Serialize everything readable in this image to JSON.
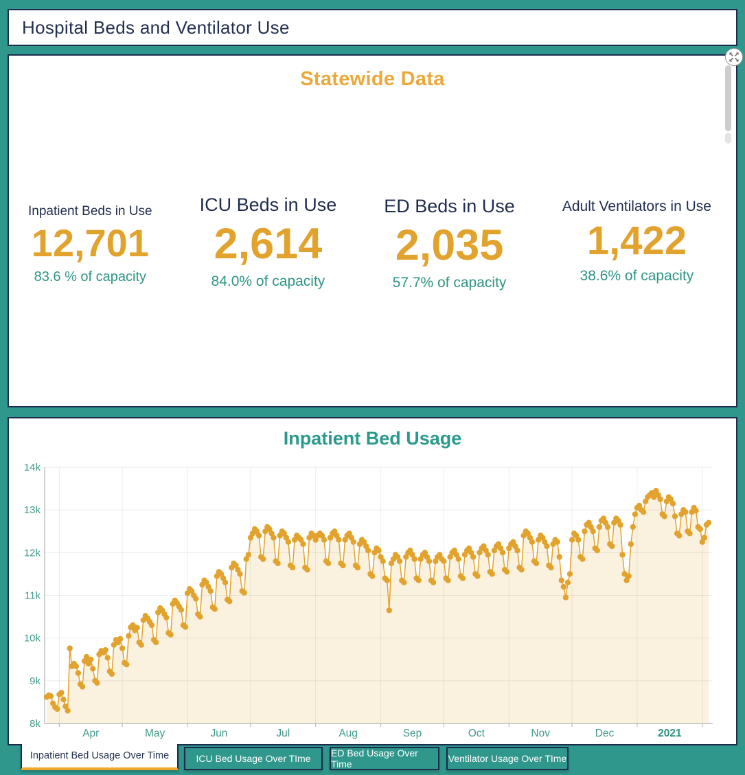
{
  "header": {
    "title": "Hospital Beds and Ventilator Use"
  },
  "statewide": {
    "title": "Statewide Data",
    "cards": [
      {
        "label": "Inpatient Beds in Use",
        "value": "12,701",
        "capacity": "83.6 % of capacity"
      },
      {
        "label": "ICU Beds in Use",
        "value": "2,614",
        "capacity": "84.0% of capacity"
      },
      {
        "label": "ED Beds in Use",
        "value": "2,035",
        "capacity": "57.7% of capacity"
      },
      {
        "label": "Adult Ventilators in Use",
        "value": "1,422",
        "capacity": "38.6% of capacity"
      }
    ]
  },
  "tabs": [
    {
      "label": "Inpatient Bed Usage Over Time",
      "active": true
    },
    {
      "label": "ICU Bed Usage Over TIme",
      "active": false
    },
    {
      "label": "ED Bed Usage Over Time",
      "active": false
    },
    {
      "label": "Ventilator Usage Over TIme",
      "active": false
    }
  ],
  "colors": {
    "background_teal": "#2F978B",
    "navy": "#1D2B4D",
    "orange": "#E2A32E",
    "orange_title": "#EAA93C",
    "teal_text": "#2E9487",
    "chart_fill": "#FAF2DF",
    "active_tab_underline": "#F1A72E"
  },
  "chart_data": {
    "type": "line",
    "title": "Inpatient Bed Usage",
    "xlabel": "",
    "ylabel": "",
    "ylim": [
      8000,
      14000
    ],
    "y_ticks": [
      "8k",
      "9k",
      "10k",
      "11k",
      "12k",
      "13k",
      "14k"
    ],
    "legend": "none",
    "grid": true,
    "months": [
      {
        "label": "Apr",
        "start": 6
      },
      {
        "label": "May",
        "start": 36
      },
      {
        "label": "Jun",
        "start": 67
      },
      {
        "label": "Jul",
        "start": 97
      },
      {
        "label": "Aug",
        "start": 128
      },
      {
        "label": "Sep",
        "start": 159
      },
      {
        "label": "Oct",
        "start": 189
      },
      {
        "label": "Nov",
        "start": 220
      },
      {
        "label": "Dec",
        "start": 250
      },
      {
        "label": "2021",
        "start": 281,
        "bold": true
      },
      {
        "label": "",
        "start": 312
      }
    ],
    "values": [
      8620,
      8660,
      8640,
      8470,
      8380,
      8340,
      8680,
      8720,
      8560,
      8400,
      8300,
      9760,
      9340,
      9400,
      9340,
      9180,
      8920,
      8860,
      9460,
      9560,
      9400,
      9500,
      9280,
      9000,
      8950,
      9620,
      9700,
      9660,
      9720,
      9540,
      9220,
      9160,
      9840,
      9960,
      9900,
      9980,
      9760,
      9420,
      9380,
      10050,
      10250,
      10300,
      10180,
      10240,
      9900,
      9840,
      10420,
      10520,
      10460,
      10380,
      10300,
      9960,
      9900,
      10600,
      10700,
      10650,
      10560,
      10480,
      10120,
      10080,
      10800,
      10880,
      10820,
      10740,
      10660,
      10300,
      10260,
      11050,
      11150,
      11100,
      11000,
      10920,
      10560,
      10500,
      11250,
      11350,
      11300,
      11200,
      11100,
      10720,
      10680,
      11450,
      11550,
      11500,
      11400,
      11300,
      10900,
      10860,
      11650,
      11750,
      11700,
      11600,
      11500,
      11100,
      11060,
      11850,
      11950,
      12350,
      12450,
      12550,
      12500,
      12400,
      11900,
      11850,
      12500,
      12600,
      12550,
      12450,
      12350,
      11800,
      11750,
      12400,
      12500,
      12450,
      12350,
      12250,
      11700,
      11650,
      12300,
      12400,
      12350,
      12300,
      12200,
      11650,
      11600,
      12350,
      12450,
      12400,
      12300,
      12400,
      12450,
      12400,
      12300,
      11800,
      11750,
      12350,
      12450,
      12500,
      12400,
      12300,
      11750,
      11700,
      12300,
      12400,
      12450,
      12350,
      12250,
      11700,
      11650,
      12200,
      12300,
      12250,
      12150,
      12050,
      11500,
      11450,
      12000,
      12100,
      12050,
      11900,
      11800,
      11400,
      11350,
      10650,
      11750,
      11850,
      11950,
      11900,
      11800,
      11350,
      11300,
      11900,
      12000,
      12050,
      11950,
      11850,
      11400,
      11350,
      11850,
      11950,
      12000,
      11900,
      11800,
      11350,
      11300,
      11800,
      11900,
      11950,
      11850,
      11800,
      11400,
      11350,
      11900,
      12000,
      12050,
      11950,
      11850,
      11450,
      11400,
      11950,
      12050,
      12100,
      12000,
      11900,
      11500,
      11450,
      12000,
      12100,
      12150,
      12050,
      11950,
      11550,
      11500,
      12050,
      12150,
      12200,
      12100,
      12000,
      11600,
      11550,
      12100,
      12200,
      12250,
      12150,
      12050,
      11650,
      11600,
      12400,
      12500,
      12450,
      12350,
      12250,
      11800,
      11750,
      12300,
      12400,
      12350,
      12250,
      12150,
      11700,
      11650,
      12200,
      12300,
      12250,
      11900,
      11350,
      11200,
      10950,
      11300,
      11500,
      12300,
      12450,
      12400,
      12300,
      11900,
      11850,
      12500,
      12650,
      12700,
      12600,
      12500,
      12100,
      12050,
      12600,
      12750,
      12800,
      12700,
      12600,
      12200,
      12150,
      12700,
      12800,
      12750,
      12650,
      11950,
      11500,
      11350,
      11450,
      12200,
      12600,
      12900,
      13050,
      13100,
      13000,
      12950,
      13200,
      13300,
      13350,
      13400,
      13300,
      13450,
      13350,
      13250,
      12900,
      12850,
      13200,
      13300,
      13250,
      13150,
      12850,
      12450,
      12400,
      12900,
      13000,
      12950,
      12500,
      12450,
      12950,
      13050,
      12980,
      12600,
      12550,
      12250,
      12350,
      12650,
      12700
    ]
  }
}
